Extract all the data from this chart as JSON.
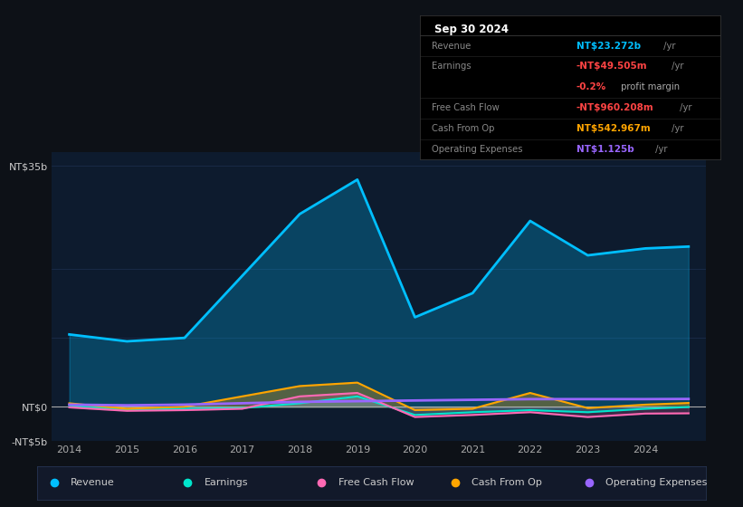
{
  "background_color": "#0d1117",
  "chart_bg_color": "#0d1b2e",
  "grid_color": "#1e3050",
  "years": [
    2014,
    2015,
    2016,
    2017,
    2018,
    2019,
    2020,
    2021,
    2022,
    2023,
    2024,
    2024.75
  ],
  "revenue": [
    10.5,
    9.5,
    10.0,
    19.0,
    28.0,
    33.0,
    13.0,
    16.5,
    27.0,
    22.0,
    23.0,
    23.272
  ],
  "earnings": [
    0.2,
    -0.5,
    -0.3,
    -0.2,
    0.5,
    1.5,
    -1.2,
    -0.8,
    -0.5,
    -0.8,
    -0.3,
    -0.05
  ],
  "free_cash_flow": [
    -0.1,
    -0.6,
    -0.5,
    -0.3,
    1.5,
    2.0,
    -1.5,
    -1.2,
    -0.8,
    -1.5,
    -1.0,
    -0.96
  ],
  "cash_from_op": [
    0.5,
    -0.3,
    0.0,
    1.5,
    3.0,
    3.5,
    -0.5,
    -0.3,
    2.0,
    -0.2,
    0.3,
    0.543
  ],
  "operating_expenses": [
    0.3,
    0.2,
    0.3,
    0.5,
    0.7,
    0.8,
    0.9,
    1.0,
    1.1,
    1.1,
    1.1,
    1.125
  ],
  "revenue_color": "#00bfff",
  "earnings_color": "#00e5cc",
  "free_cash_flow_color": "#ff69b4",
  "cash_from_op_color": "#ffa500",
  "operating_expenses_color": "#9966ff",
  "ylim": [
    -5,
    37
  ],
  "info_header": "Sep 30 2024",
  "label_rows": [
    {
      "label": "Revenue",
      "val": "NT$23.272b",
      "suffix": " /yr",
      "vcol": "#00bfff",
      "extra": null,
      "ecol": null
    },
    {
      "label": "Earnings",
      "val": "-NT$49.505m",
      "suffix": " /yr",
      "vcol": "#ff4444",
      "extra": null,
      "ecol": null
    },
    {
      "label": "",
      "val": "-0.2%",
      "suffix": "",
      "vcol": "#ff4444",
      "extra": " profit margin",
      "ecol": "#aaaaaa"
    },
    {
      "label": "Free Cash Flow",
      "val": "-NT$960.208m",
      "suffix": " /yr",
      "vcol": "#ff4444",
      "extra": null,
      "ecol": null
    },
    {
      "label": "Cash From Op",
      "val": "NT$542.967m",
      "suffix": " /yr",
      "vcol": "#ffa500",
      "extra": null,
      "ecol": null
    },
    {
      "label": "Operating Expenses",
      "val": "NT$1.125b",
      "suffix": " /yr",
      "vcol": "#9966ff",
      "extra": null,
      "ecol": null
    }
  ],
  "legend_items": [
    {
      "label": "Revenue",
      "color": "#00bfff"
    },
    {
      "label": "Earnings",
      "color": "#00e5cc"
    },
    {
      "label": "Free Cash Flow",
      "color": "#ff69b4"
    },
    {
      "label": "Cash From Op",
      "color": "#ffa500"
    },
    {
      "label": "Operating Expenses",
      "color": "#9966ff"
    }
  ]
}
